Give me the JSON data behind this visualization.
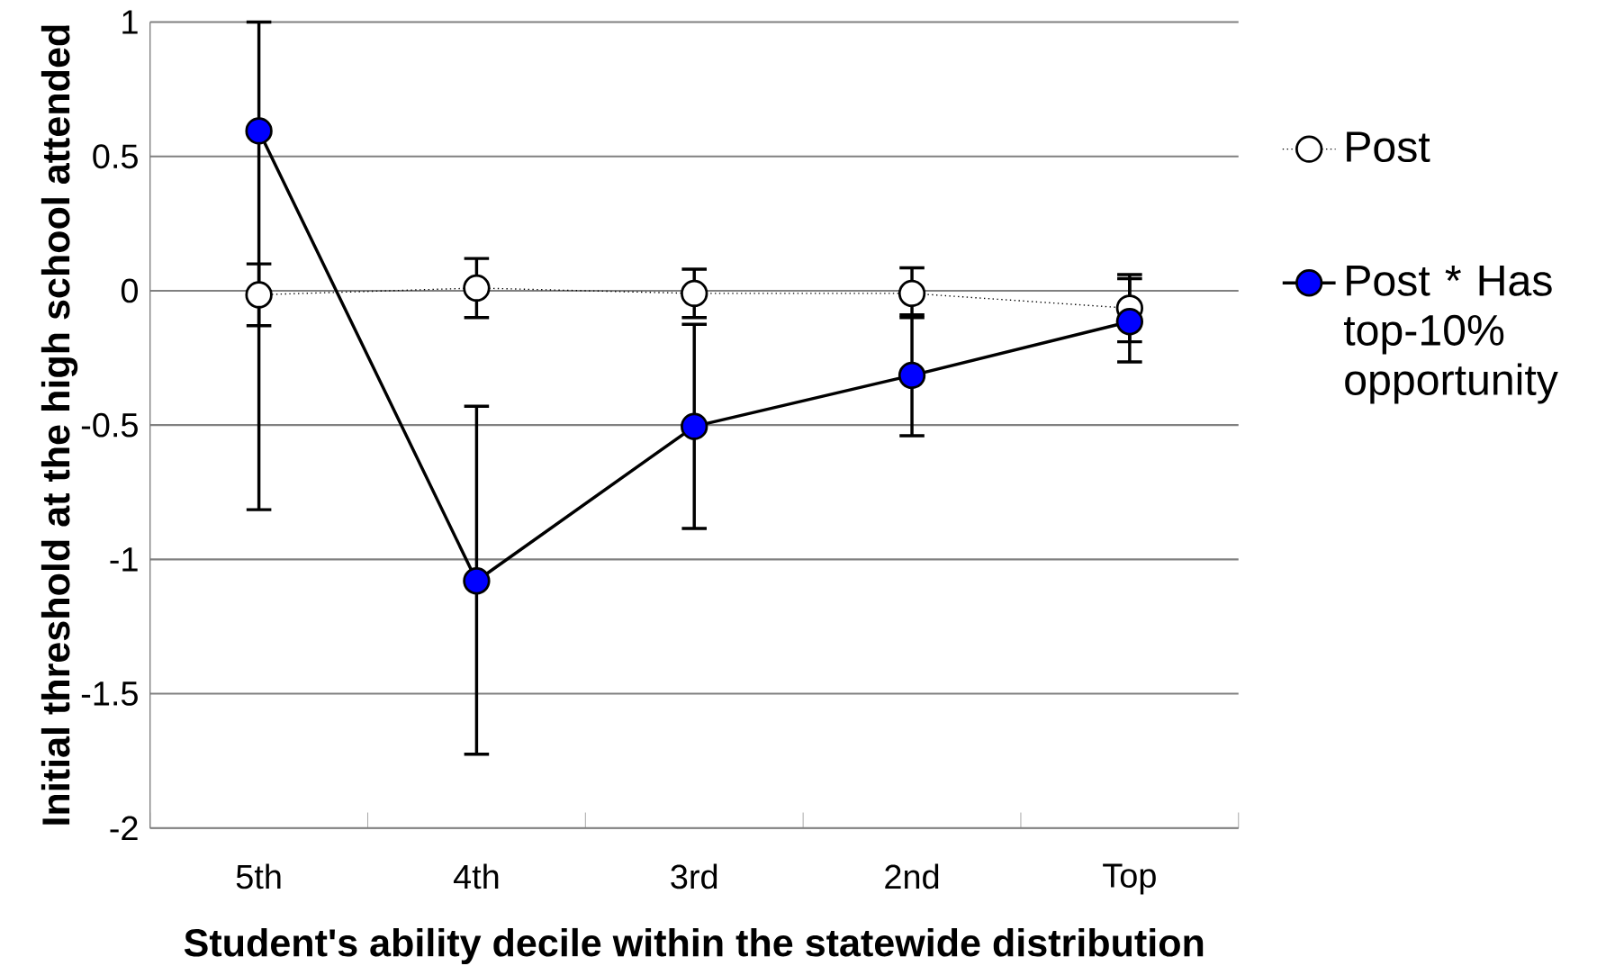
{
  "chart_data": {
    "type": "line",
    "xlabel": "Student's ability decile within the statewide distribution",
    "ylabel": "Initial threshold at the high school attended",
    "categories": [
      "5th",
      "4th",
      "3rd",
      "2nd",
      "Top"
    ],
    "series": [
      {
        "name": "Post",
        "color": "#ffffff",
        "line_style": "dotted",
        "values": [
          -0.015,
          0.01,
          -0.01,
          -0.01,
          -0.065
        ],
        "errors": [
          [
            -0.13,
            0.1
          ],
          [
            -0.1,
            0.12
          ],
          [
            -0.1,
            0.08
          ],
          [
            -0.1,
            0.085
          ],
          [
            -0.19,
            0.06
          ]
        ]
      },
      {
        "name": "Post * Has top-10% opportunity",
        "color": "#0000ff",
        "line_style": "solid",
        "values": [
          0.595,
          -1.08,
          -0.505,
          -0.315,
          -0.115
        ],
        "errors": [
          [
            -0.815,
            1.0
          ],
          [
            -1.725,
            -0.43
          ],
          [
            -0.885,
            -0.125
          ],
          [
            -0.54,
            -0.09
          ],
          [
            -0.265,
            0.045
          ]
        ]
      }
    ],
    "ylim": [
      -2,
      1
    ],
    "yticks": [
      -2,
      -1.5,
      -1,
      -0.5,
      0,
      0.5,
      1
    ],
    "grid": "y",
    "legend": "right",
    "marker": "circle"
  }
}
